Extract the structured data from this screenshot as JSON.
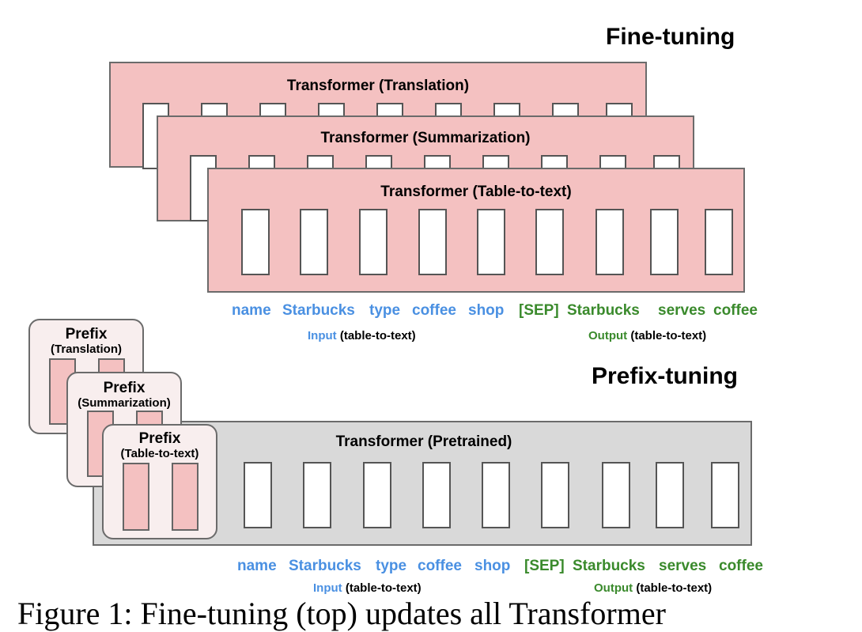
{
  "headings": {
    "fine_tuning": "Fine-tuning",
    "prefix_tuning": "Prefix-tuning"
  },
  "fine_tuning": {
    "stack": [
      {
        "title": "Transformer (Translation)"
      },
      {
        "title": "Transformer (Summarization)"
      },
      {
        "title": "Transformer (Table-to-text)"
      }
    ]
  },
  "tokens": {
    "input": [
      "name",
      "Starbucks",
      "type",
      "coffee",
      "shop"
    ],
    "output": [
      "[SEP]",
      "Starbucks",
      "serves",
      "coffee"
    ],
    "input_label": "Input",
    "output_label": "Output",
    "task": "(table-to-text)"
  },
  "prefix_tuning": {
    "transformer_title": "Transformer  (Pretrained)",
    "prefixes": [
      {
        "title": "Prefix",
        "sub": "(Translation)"
      },
      {
        "title": "Prefix",
        "sub": "(Summarization)"
      },
      {
        "title": "Prefix",
        "sub": "(Table-to-text)"
      }
    ]
  },
  "colors": {
    "input": "#4a90e2",
    "output": "#3a8a2c",
    "fine_tune_box": "#f4c1c1",
    "pretrained_box": "#d9d9d9"
  },
  "caption_fragment": "Figure 1:  Fine-tuning (top) updates all Transformer"
}
